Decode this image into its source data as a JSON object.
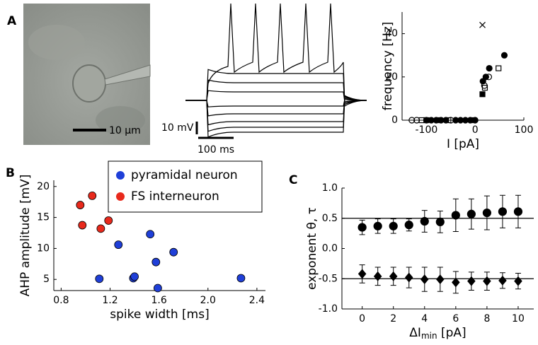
{
  "panel_labels": [
    "A",
    "B",
    "C"
  ],
  "scale_bars": {
    "image": "10 μm",
    "voltage": "10 mV",
    "time": "100 ms"
  },
  "chart_data": [
    {
      "type": "scatter",
      "ylabel": "frequency [Hz]",
      "xlabel": "I [pA]",
      "xlim": [
        -150,
        100
      ],
      "ylim": [
        0,
        50
      ],
      "xticks": [
        -100,
        0,
        100
      ],
      "yticks": [
        0,
        20,
        40
      ],
      "series": [
        {
          "marker": "circle",
          "filled": true,
          "color": "#000000",
          "x": [
            60,
            29,
            22,
            16,
            -90,
            -80,
            -70,
            -60,
            -40,
            -30,
            -20,
            -10,
            0
          ],
          "values": [
            30,
            24,
            20,
            18,
            0,
            0,
            0,
            0,
            0,
            0,
            0,
            0,
            0
          ]
        },
        {
          "marker": "circle",
          "filled": false,
          "color": "#000000",
          "x": [
            28,
            19,
            -130,
            -120,
            -100,
            -50
          ],
          "values": [
            20,
            16,
            0,
            0,
            0,
            0
          ]
        },
        {
          "marker": "square",
          "filled": false,
          "color": "#000000",
          "x": [
            48,
            20,
            -110,
            -55
          ],
          "values": [
            24,
            15,
            0,
            0
          ]
        },
        {
          "marker": "square",
          "filled": true,
          "color": "#000000",
          "x": [
            15,
            -100,
            -75,
            -5
          ],
          "values": [
            12,
            0,
            0,
            0
          ]
        },
        {
          "marker": "cross",
          "filled": false,
          "color": "#000000",
          "x": [
            15
          ],
          "values": [
            44
          ]
        }
      ]
    },
    {
      "type": "scatter",
      "xlabel": "spike width [ms]",
      "ylabel": "AHP amplitude [mV]",
      "xlim": [
        0.74,
        2.47
      ],
      "ylim": [
        3.2,
        21
      ],
      "xticks": [
        0.8,
        1.2,
        1.6,
        {
          "value": 2,
          "label": "2.0"
        },
        2.4
      ],
      "yticks": [
        5,
        10,
        15,
        20
      ],
      "legend": "upper right",
      "series": [
        {
          "name": "pyramidal neuron",
          "marker": "circle",
          "filled": true,
          "color": "#1f3fd8",
          "x": [
            1.268,
            1.528,
            1.719,
            1.575,
            1.112,
            1.39,
            1.4,
            1.59,
            2.27
          ],
          "values": [
            10.6,
            12.3,
            9.4,
            7.8,
            5.1,
            5.2,
            5.45,
            3.6,
            5.2
          ]
        },
        {
          "name": "FS interneuron",
          "marker": "circle",
          "filled": true,
          "color": "#e8291c",
          "x": [
            0.956,
            1.054,
            0.973,
            1.124,
            1.187
          ],
          "values": [
            17.0,
            18.5,
            13.75,
            13.2,
            14.5
          ]
        }
      ]
    },
    {
      "type": "errorbar",
      "ylabel": "exponent θ, τ",
      "xlabel": {
        "main": "ΔI",
        "sub": "min",
        "unit": " [pA]"
      },
      "xlim": [
        -1.3,
        11
      ],
      "ylim": [
        -1,
        1
      ],
      "xticks": [
        0,
        2,
        4,
        6,
        8,
        10
      ],
      "yticks": [
        {
          "value": 1,
          "label": "1.0"
        },
        0.5,
        {
          "value": 0,
          "label": "0.0"
        },
        -0.5,
        {
          "value": -1,
          "label": "-1.0"
        }
      ],
      "hlines": [
        0.5,
        -0.5
      ],
      "series": [
        {
          "marker": "circle",
          "color": "#000000",
          "x": [
            0,
            1,
            2,
            3,
            4,
            5,
            6,
            7,
            8,
            9,
            10
          ],
          "values": [
            0.35,
            0.37,
            0.37,
            0.39,
            0.45,
            0.44,
            0.55,
            0.57,
            0.59,
            0.61,
            0.61
          ],
          "errors": [
            0.12,
            0.12,
            0.12,
            0.1,
            0.18,
            0.18,
            0.27,
            0.25,
            0.28,
            0.27,
            0.27
          ]
        },
        {
          "marker": "diamond",
          "color": "#000000",
          "x": [
            0,
            1,
            2,
            3,
            4,
            5,
            6,
            7,
            8,
            9,
            10
          ],
          "values": [
            -0.42,
            -0.46,
            -0.46,
            -0.48,
            -0.51,
            -0.51,
            -0.56,
            -0.54,
            -0.54,
            -0.53,
            -0.54
          ],
          "errors": [
            0.15,
            0.15,
            0.15,
            0.17,
            0.2,
            0.2,
            0.18,
            0.15,
            0.15,
            0.13,
            0.13
          ]
        }
      ]
    }
  ]
}
